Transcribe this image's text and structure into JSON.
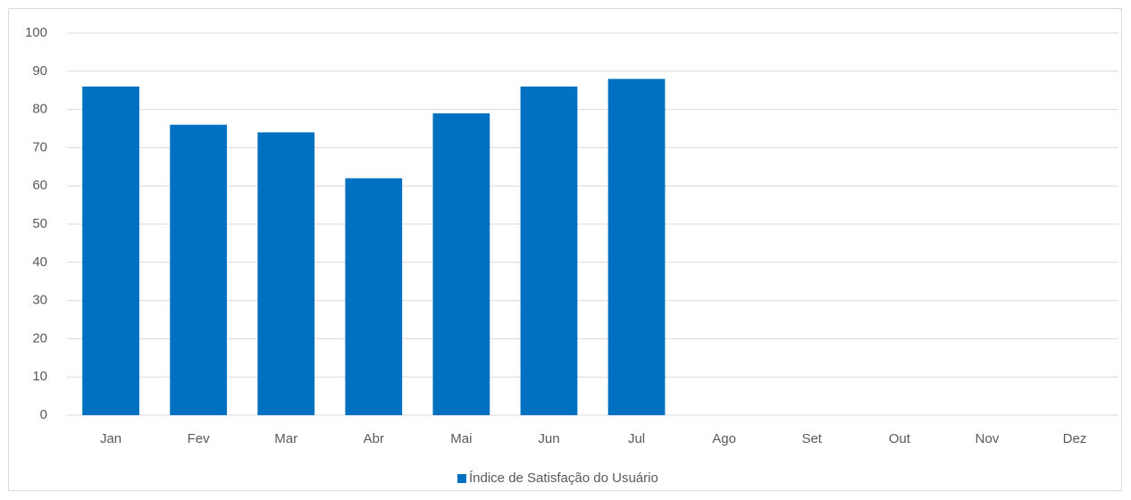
{
  "chart_data": {
    "type": "bar",
    "categories": [
      "Jan",
      "Fev",
      "Mar",
      "Abr",
      "Mai",
      "Jun",
      "Jul",
      "Ago",
      "Set",
      "Out",
      "Nov",
      "Dez"
    ],
    "series": [
      {
        "name": "Índice de Satisfação do Usuário",
        "color": "#0070c0",
        "values": [
          86,
          76,
          74,
          62,
          79,
          86,
          88,
          null,
          null,
          null,
          null,
          null
        ]
      }
    ],
    "ylim": [
      0,
      100
    ],
    "yticks": [
      0,
      10,
      20,
      30,
      40,
      50,
      60,
      70,
      80,
      90,
      100
    ],
    "grid": true,
    "legend": "bottom"
  }
}
